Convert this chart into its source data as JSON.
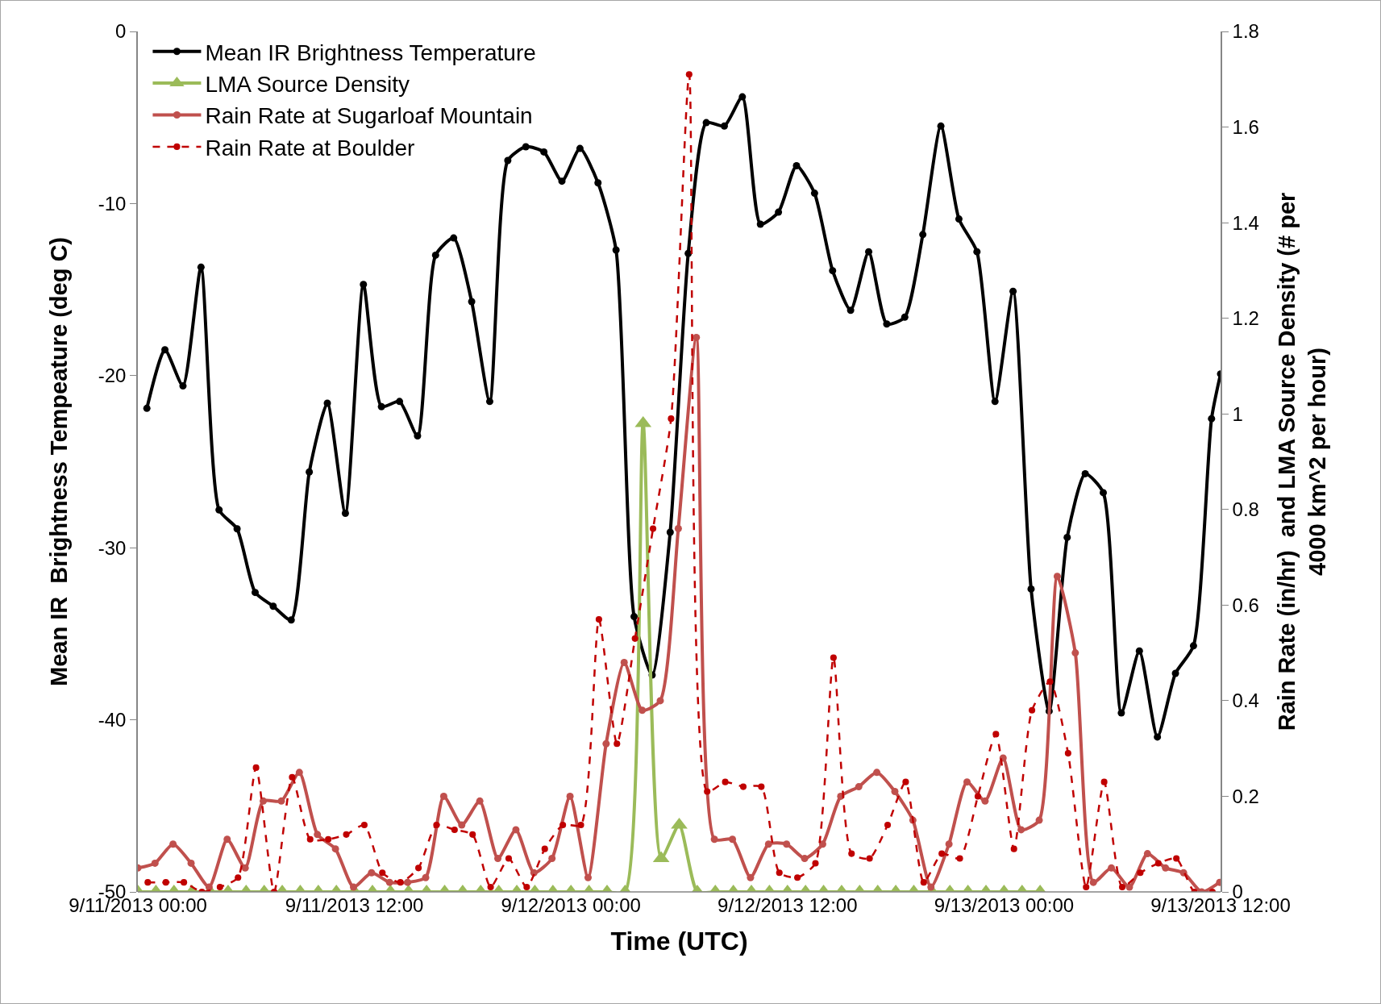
{
  "chart_data": {
    "type": "line",
    "xlabel": "Time (UTC)",
    "ylabel": "Mean IR  Brightness Tempeature (deg C)",
    "y2label": "Rain Rate (in/hr)  and LMA Source Density (# per 4000 km^2 per hour)",
    "xlim": [
      "2013-09-11T00:00",
      "2013-09-13T12:00"
    ],
    "xticks": [
      {
        "value": "2013-09-11T00:00",
        "label": "9/11/2013 00:00"
      },
      {
        "value": "2013-09-11T12:00",
        "label": "9/11/2013 12:00"
      },
      {
        "value": "2013-09-12T00:00",
        "label": "9/12/2013 00:00"
      },
      {
        "value": "2013-09-12T12:00",
        "label": "9/12/2013 12:00"
      },
      {
        "value": "2013-09-13T00:00",
        "label": "9/13/2013 00:00"
      },
      {
        "value": "2013-09-13T12:00",
        "label": "9/13/2013 12:00"
      }
    ],
    "ylim": [
      -50,
      0
    ],
    "yticks": [
      -50,
      -40,
      -30,
      -20,
      -10,
      0
    ],
    "y2lim": [
      0,
      1.8
    ],
    "y2ticks": [
      0,
      0.2,
      0.4,
      0.6,
      0.8,
      1,
      1.2,
      1.4,
      1.6,
      1.8
    ],
    "grid": false,
    "legend": "top left",
    "series": [
      {
        "name": "Mean IR Brightness Temperature",
        "color": "#000000",
        "marker": "circle",
        "line_style": "solid",
        "x": [
          "2013-09-11T00:30",
          "2013-09-11T01:30",
          "2013-09-11T02:30",
          "2013-09-11T03:30",
          "2013-09-11T04:30",
          "2013-09-11T05:30",
          "2013-09-11T06:30",
          "2013-09-11T07:30",
          "2013-09-11T08:30",
          "2013-09-11T09:30",
          "2013-09-11T10:30",
          "2013-09-11T11:30",
          "2013-09-11T12:30",
          "2013-09-11T13:30",
          "2013-09-11T14:30",
          "2013-09-11T15:30",
          "2013-09-11T16:30",
          "2013-09-11T17:30",
          "2013-09-11T18:30",
          "2013-09-11T19:30",
          "2013-09-11T20:30",
          "2013-09-11T21:30",
          "2013-09-11T22:30",
          "2013-09-11T23:30",
          "2013-09-12T00:30",
          "2013-09-12T01:30",
          "2013-09-12T02:30",
          "2013-09-12T03:30",
          "2013-09-12T04:30",
          "2013-09-12T05:30",
          "2013-09-12T06:30",
          "2013-09-12T07:30",
          "2013-09-12T08:30",
          "2013-09-12T09:30",
          "2013-09-12T10:30",
          "2013-09-12T11:30",
          "2013-09-12T12:30",
          "2013-09-12T13:30",
          "2013-09-12T14:30",
          "2013-09-12T15:30",
          "2013-09-12T16:30",
          "2013-09-12T17:30",
          "2013-09-12T18:30",
          "2013-09-12T19:30",
          "2013-09-12T20:30",
          "2013-09-12T21:30",
          "2013-09-12T22:30",
          "2013-09-12T23:30",
          "2013-09-13T00:30",
          "2013-09-13T01:30",
          "2013-09-13T02:30",
          "2013-09-13T03:30",
          "2013-09-13T04:30",
          "2013-09-13T05:30",
          "2013-09-13T06:30",
          "2013-09-13T07:30",
          "2013-09-13T08:30",
          "2013-09-13T09:30",
          "2013-09-13T10:30",
          "2013-09-13T11:30",
          "2013-09-13T12:00"
        ],
        "values": [
          -21.9,
          -18.5,
          -20.6,
          -13.7,
          -27.8,
          -28.9,
          -32.6,
          -33.4,
          -34.2,
          -25.6,
          -21.6,
          -28.0,
          -14.7,
          -21.8,
          -21.5,
          -23.5,
          -13.0,
          -12.0,
          -15.7,
          -21.5,
          -7.5,
          -6.7,
          -7.0,
          -8.7,
          -6.8,
          -8.8,
          -12.7,
          -34.0,
          -37.4,
          -29.1,
          -12.9,
          -5.3,
          -5.5,
          -3.8,
          -11.2,
          -10.5,
          -7.8,
          -9.4,
          -13.9,
          -16.2,
          -12.8,
          -17.0,
          -16.6,
          -11.8,
          -5.5,
          -10.9,
          -12.8,
          -21.5,
          -15.1,
          -32.4,
          -39.5,
          -29.4,
          -25.7,
          -26.8,
          -39.6,
          -36.0,
          -41.0,
          -37.3,
          -35.7,
          -22.5,
          -19.9
        ]
      },
      {
        "name": "LMA Source Density",
        "color": "#9bbb59",
        "marker": "triangle",
        "line_style": "solid",
        "axis": "y2",
        "x": [
          "2013-09-11T00:00",
          "2013-09-11T01:00",
          "2013-09-11T02:00",
          "2013-09-11T03:00",
          "2013-09-11T04:00",
          "2013-09-11T05:00",
          "2013-09-11T06:00",
          "2013-09-11T07:00",
          "2013-09-11T08:00",
          "2013-09-11T09:00",
          "2013-09-11T10:00",
          "2013-09-11T11:00",
          "2013-09-11T12:00",
          "2013-09-11T13:00",
          "2013-09-11T14:00",
          "2013-09-11T15:00",
          "2013-09-11T16:00",
          "2013-09-11T17:00",
          "2013-09-11T18:00",
          "2013-09-11T19:00",
          "2013-09-11T20:00",
          "2013-09-11T21:00",
          "2013-09-11T22:00",
          "2013-09-11T23:00",
          "2013-09-12T00:00",
          "2013-09-12T01:00",
          "2013-09-12T02:00",
          "2013-09-12T03:00",
          "2013-09-12T04:00",
          "2013-09-12T05:00",
          "2013-09-12T06:00",
          "2013-09-12T07:00",
          "2013-09-12T08:00",
          "2013-09-12T09:00",
          "2013-09-12T10:00",
          "2013-09-12T11:00",
          "2013-09-12T12:00",
          "2013-09-12T13:00",
          "2013-09-12T14:00",
          "2013-09-12T15:00",
          "2013-09-12T16:00",
          "2013-09-12T17:00",
          "2013-09-12T18:00",
          "2013-09-12T19:00",
          "2013-09-12T20:00",
          "2013-09-12T21:00",
          "2013-09-12T22:00",
          "2013-09-12T23:00",
          "2013-09-13T00:00",
          "2013-09-13T01:00",
          "2013-09-13T02:00"
        ],
        "values": [
          0,
          0,
          0,
          0,
          0,
          0,
          0,
          0,
          0,
          0,
          0,
          0,
          0,
          0,
          0,
          0,
          0,
          0,
          0,
          0,
          0,
          0,
          0,
          0,
          0,
          0,
          0,
          0,
          0.98,
          0.07,
          0.14,
          0,
          0,
          0,
          0,
          0,
          0,
          0,
          0,
          0,
          0,
          0,
          0,
          0,
          0,
          0,
          0,
          0,
          0,
          0,
          0
        ]
      },
      {
        "name": "Rain Rate at Sugarloaf Mountain",
        "color": "#c0504d",
        "marker": "circle",
        "line_style": "solid",
        "axis": "y2",
        "x": [
          "2013-09-11T00:00",
          "2013-09-11T00:57",
          "2013-09-11T01:57",
          "2013-09-11T02:57",
          "2013-09-11T03:57",
          "2013-09-11T04:57",
          "2013-09-11T05:57",
          "2013-09-11T06:57",
          "2013-09-11T07:57",
          "2013-09-11T08:57",
          "2013-09-11T09:57",
          "2013-09-11T10:57",
          "2013-09-11T11:57",
          "2013-09-11T12:57",
          "2013-09-11T13:57",
          "2013-09-11T14:57",
          "2013-09-11T15:57",
          "2013-09-11T16:57",
          "2013-09-11T17:57",
          "2013-09-11T18:57",
          "2013-09-11T19:57",
          "2013-09-11T20:57",
          "2013-09-11T21:57",
          "2013-09-11T22:57",
          "2013-09-11T23:57",
          "2013-09-12T00:57",
          "2013-09-12T01:57",
          "2013-09-12T02:57",
          "2013-09-12T03:57",
          "2013-09-12T04:57",
          "2013-09-12T05:57",
          "2013-09-12T06:57",
          "2013-09-12T07:57",
          "2013-09-12T08:57",
          "2013-09-12T09:57",
          "2013-09-12T10:57",
          "2013-09-12T11:57",
          "2013-09-12T12:57",
          "2013-09-12T13:57",
          "2013-09-12T14:57",
          "2013-09-12T15:57",
          "2013-09-12T16:57",
          "2013-09-12T17:57",
          "2013-09-12T18:57",
          "2013-09-12T19:57",
          "2013-09-12T20:57",
          "2013-09-12T21:57",
          "2013-09-12T22:57",
          "2013-09-12T23:57",
          "2013-09-13T00:57",
          "2013-09-13T01:57",
          "2013-09-13T02:57",
          "2013-09-13T03:57",
          "2013-09-13T04:57",
          "2013-09-13T05:57",
          "2013-09-13T06:57",
          "2013-09-13T07:57",
          "2013-09-13T08:57",
          "2013-09-13T09:57",
          "2013-09-13T10:57",
          "2013-09-13T11:57"
        ],
        "values": [
          0.05,
          0.06,
          0.1,
          0.06,
          0.01,
          0.11,
          0.05,
          0.19,
          0.19,
          0.25,
          0.12,
          0.09,
          0.01,
          0.04,
          0.02,
          0.02,
          0.03,
          0.2,
          0.14,
          0.19,
          0.07,
          0.13,
          0.04,
          0.07,
          0.2,
          0.03,
          0.31,
          0.48,
          0.38,
          0.4,
          0.76,
          1.16,
          0.11,
          0.11,
          0.03,
          0.1,
          0.1,
          0.07,
          0.1,
          0.2,
          0.22,
          0.25,
          0.21,
          0.15,
          0.01,
          0.1,
          0.23,
          0.19,
          0.28,
          0.13,
          0.15,
          0.66,
          0.5,
          0.02,
          0.05,
          0.01,
          0.08,
          0.05,
          0.04,
          0.0,
          0.02
        ]
      },
      {
        "name": "Rain Rate at Boulder",
        "color": "#c00000",
        "marker": "circle",
        "line_style": "dashed",
        "axis": "y2",
        "x": [
          "2013-09-11T00:33",
          "2013-09-11T01:33",
          "2013-09-11T02:33",
          "2013-09-11T03:33",
          "2013-09-11T04:33",
          "2013-09-11T05:33",
          "2013-09-11T06:33",
          "2013-09-11T07:33",
          "2013-09-11T08:33",
          "2013-09-11T09:33",
          "2013-09-11T10:33",
          "2013-09-11T11:33",
          "2013-09-11T12:33",
          "2013-09-11T13:33",
          "2013-09-11T14:33",
          "2013-09-11T15:33",
          "2013-09-11T16:33",
          "2013-09-11T17:33",
          "2013-09-11T18:33",
          "2013-09-11T19:33",
          "2013-09-11T20:33",
          "2013-09-11T21:33",
          "2013-09-11T22:33",
          "2013-09-11T23:33",
          "2013-09-12T00:33",
          "2013-09-12T01:33",
          "2013-09-12T02:33",
          "2013-09-12T03:33",
          "2013-09-12T04:33",
          "2013-09-12T05:33",
          "2013-09-12T06:33",
          "2013-09-12T07:33",
          "2013-09-12T08:33",
          "2013-09-12T09:33",
          "2013-09-12T10:33",
          "2013-09-12T11:33",
          "2013-09-12T12:33",
          "2013-09-12T13:33",
          "2013-09-12T14:33",
          "2013-09-12T15:33",
          "2013-09-12T16:33",
          "2013-09-12T17:33",
          "2013-09-12T18:33",
          "2013-09-12T19:33",
          "2013-09-12T20:33",
          "2013-09-12T21:33",
          "2013-09-12T22:33",
          "2013-09-12T23:33",
          "2013-09-13T00:33",
          "2013-09-13T01:33",
          "2013-09-13T02:33",
          "2013-09-13T03:33",
          "2013-09-13T04:33",
          "2013-09-13T05:33",
          "2013-09-13T06:33",
          "2013-09-13T07:33",
          "2013-09-13T08:33",
          "2013-09-13T09:33",
          "2013-09-13T10:33",
          "2013-09-13T11:33"
        ],
        "values": [
          0.02,
          0.02,
          0.02,
          0.0,
          0.01,
          0.03,
          0.26,
          0.0,
          0.24,
          0.11,
          0.11,
          0.12,
          0.14,
          0.04,
          0.02,
          0.05,
          0.14,
          0.13,
          0.12,
          0.01,
          0.07,
          0.01,
          0.09,
          0.14,
          0.14,
          0.57,
          0.31,
          0.53,
          0.76,
          0.99,
          1.71,
          0.21,
          0.23,
          0.22,
          0.22,
          0.04,
          0.03,
          0.06,
          0.49,
          0.08,
          0.07,
          0.14,
          0.23,
          0.02,
          0.08,
          0.07,
          0.2,
          0.33,
          0.09,
          0.38,
          0.44,
          0.29,
          0.01,
          0.23,
          0.01,
          0.04,
          0.06,
          0.07,
          0.0,
          0.0
        ]
      }
    ]
  }
}
